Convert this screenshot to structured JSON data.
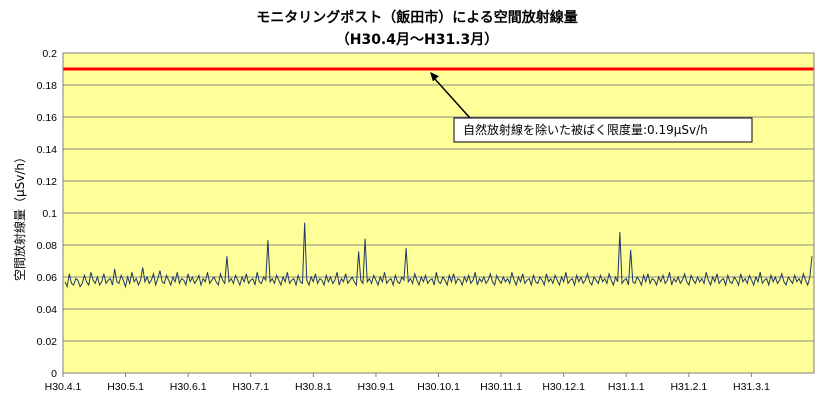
{
  "chart_data": {
    "type": "line",
    "title": "モニタリングポスト（飯田市）による空間放射線量",
    "subtitle": "（H30.4月～H31.3月）",
    "xlabel": "",
    "ylabel": "空間放射線量（μSv/h）",
    "ylim": [
      0,
      0.2
    ],
    "yticks": [
      "0",
      "0.02",
      "0.04",
      "0.06",
      "0.08",
      "0.1",
      "0.12",
      "0.14",
      "0.16",
      "0.18",
      "0.2"
    ],
    "xticks": [
      "H30.4.1",
      "H30.5.1",
      "H30.6.1",
      "H30.7.1",
      "H30.8.1",
      "H30.9.1",
      "H30.10.1",
      "H30.11.1",
      "H30.12.1",
      "H31.1.1",
      "H31.2.1",
      "H31.3.1"
    ],
    "grid": true,
    "series": [
      {
        "values": [
          0.057,
          0.054,
          0.062,
          0.056,
          0.055,
          0.059,
          0.058,
          0.054,
          0.056,
          0.061,
          0.057,
          0.055,
          0.063,
          0.058,
          0.056,
          0.06,
          0.055,
          0.057,
          0.062,
          0.056,
          0.058,
          0.059,
          0.055,
          0.065,
          0.057,
          0.056,
          0.061,
          0.058,
          0.054,
          0.06,
          0.056,
          0.063,
          0.057,
          0.059,
          0.055,
          0.058,
          0.066,
          0.057,
          0.06,
          0.056,
          0.058,
          0.062,
          0.055,
          0.059,
          0.064,
          0.057,
          0.056,
          0.061,
          0.058,
          0.055,
          0.06,
          0.057,
          0.063,
          0.056,
          0.059,
          0.058,
          0.055,
          0.062,
          0.057,
          0.06,
          0.056,
          0.058,
          0.061,
          0.055,
          0.059,
          0.057,
          0.063,
          0.056,
          0.058,
          0.06,
          0.057,
          0.055,
          0.062,
          0.058,
          0.056,
          0.073,
          0.057,
          0.059,
          0.056,
          0.061,
          0.058,
          0.055,
          0.06,
          0.057,
          0.062,
          0.056,
          0.058,
          0.059,
          0.055,
          0.063,
          0.057,
          0.056,
          0.06,
          0.058,
          0.083,
          0.057,
          0.059,
          0.056,
          0.061,
          0.058,
          0.055,
          0.06,
          0.057,
          0.063,
          0.056,
          0.058,
          0.059,
          0.055,
          0.061,
          0.057,
          0.056,
          0.094,
          0.058,
          0.055,
          0.06,
          0.057,
          0.062,
          0.056,
          0.059,
          0.058,
          0.055,
          0.061,
          0.057,
          0.06,
          0.056,
          0.058,
          0.063,
          0.055,
          0.059,
          0.057,
          0.062,
          0.056,
          0.058,
          0.06,
          0.057,
          0.055,
          0.076,
          0.058,
          0.056,
          0.084,
          0.057,
          0.059,
          0.056,
          0.061,
          0.058,
          0.055,
          0.06,
          0.057,
          0.063,
          0.056,
          0.058,
          0.059,
          0.055,
          0.061,
          0.057,
          0.056,
          0.06,
          0.058,
          0.078,
          0.057,
          0.059,
          0.056,
          0.062,
          0.058,
          0.055,
          0.06,
          0.057,
          0.061,
          0.056,
          0.058,
          0.059,
          0.055,
          0.063,
          0.057,
          0.056,
          0.06,
          0.058,
          0.055,
          0.061,
          0.057,
          0.062,
          0.056,
          0.059,
          0.058,
          0.055,
          0.06,
          0.057,
          0.061,
          0.056,
          0.058,
          0.063,
          0.055,
          0.059,
          0.057,
          0.06,
          0.056,
          0.058,
          0.062,
          0.057,
          0.055,
          0.061,
          0.058,
          0.056,
          0.06,
          0.057,
          0.059,
          0.056,
          0.063,
          0.058,
          0.055,
          0.06,
          0.057,
          0.062,
          0.056,
          0.058,
          0.059,
          0.055,
          0.061,
          0.057,
          0.056,
          0.06,
          0.058,
          0.055,
          0.062,
          0.057,
          0.059,
          0.056,
          0.061,
          0.058,
          0.055,
          0.06,
          0.057,
          0.063,
          0.056,
          0.058,
          0.059,
          0.055,
          0.061,
          0.057,
          0.06,
          0.056,
          0.058,
          0.062,
          0.057,
          0.055,
          0.06,
          0.058,
          0.056,
          0.061,
          0.057,
          0.059,
          0.056,
          0.062,
          0.058,
          0.055,
          0.06,
          0.057,
          0.088,
          0.056,
          0.058,
          0.059,
          0.055,
          0.077,
          0.057,
          0.056,
          0.06,
          0.058,
          0.055,
          0.061,
          0.057,
          0.062,
          0.056,
          0.059,
          0.058,
          0.055,
          0.06,
          0.057,
          0.061,
          0.056,
          0.058,
          0.063,
          0.055,
          0.059,
          0.057,
          0.06,
          0.056,
          0.058,
          0.062,
          0.057,
          0.055,
          0.061,
          0.058,
          0.056,
          0.06,
          0.057,
          0.059,
          0.056,
          0.063,
          0.058,
          0.055,
          0.06,
          0.057,
          0.062,
          0.056,
          0.058,
          0.059,
          0.055,
          0.061,
          0.057,
          0.056,
          0.06,
          0.058,
          0.055,
          0.062,
          0.057,
          0.059,
          0.056,
          0.061,
          0.058,
          0.055,
          0.06,
          0.057,
          0.063,
          0.056,
          0.058,
          0.059,
          0.055,
          0.061,
          0.057,
          0.06,
          0.056,
          0.058,
          0.062,
          0.057,
          0.055,
          0.06,
          0.058,
          0.056,
          0.061,
          0.057,
          0.059,
          0.056,
          0.062,
          0.058,
          0.055,
          0.06,
          0.073
        ],
        "color": "#1f3864"
      }
    ],
    "reference_line": {
      "value": 0.19,
      "color": "#ff0000",
      "label": "自然放射線を除いた被ばく限度量:0.19μSv/h"
    },
    "plot_background": "#ffff99"
  }
}
